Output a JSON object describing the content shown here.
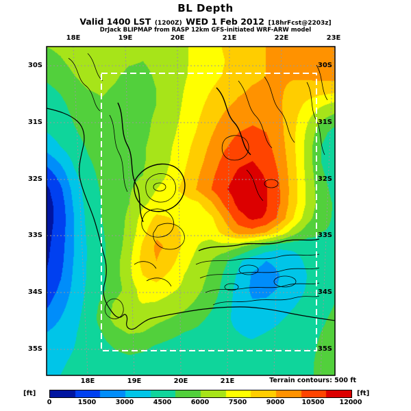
{
  "header": {
    "title": "BL Depth",
    "valid_prefix": "Valid 1400 LST",
    "valid_zulu": "(1200Z)",
    "valid_date": "WED 1 Feb 2012",
    "valid_fcst": "[18hrFcst@2203z]",
    "model_line": "DrJack BLIPMAP from RASP 12km GFS-initiated WRF-ARW model"
  },
  "axes": {
    "top_lons": [
      "18E",
      "19E",
      "20E",
      "21E",
      "22E",
      "23E"
    ],
    "bottom_lons": [
      "18E",
      "19E",
      "20E",
      "21E"
    ],
    "lat_labels": [
      "30S",
      "31S",
      "32S",
      "33S",
      "34S",
      "35S"
    ]
  },
  "footer": {
    "terrain_note": "Terrain contours: 500 ft",
    "unit_label": "[ft]"
  },
  "chart_data": {
    "type": "heatmap",
    "title": "BL Depth",
    "units": "ft",
    "valid_time": "1400 LST (1200Z) WED 1 Feb 2012",
    "forecast": "18hrFcst@2203z",
    "model": "DrJack BLIPMAP from RASP 12km GFS-initiated WRF-ARW model",
    "region": {
      "lon_min_e": 17.7,
      "lon_max_e": 23.3,
      "lat_north_s": 29.7,
      "lat_south_s": 35.5
    },
    "terrain_contour_interval_ft": 500,
    "fill_interval_ft": 1000,
    "colorbar": {
      "min": 0,
      "max": 12000,
      "ticks": [
        0,
        1500,
        3000,
        4500,
        6000,
        7500,
        9000,
        10500,
        12000
      ],
      "stops": [
        [
          0,
          "#000078"
        ],
        [
          1500,
          "#0040f0"
        ],
        [
          3000,
          "#00b4ff"
        ],
        [
          4200,
          "#00dcc8"
        ],
        [
          5000,
          "#28c850"
        ],
        [
          6200,
          "#8cdc20"
        ],
        [
          7500,
          "#ffff00"
        ],
        [
          8600,
          "#ffc800"
        ],
        [
          9600,
          "#ff8c00"
        ],
        [
          10600,
          "#ff3c00"
        ],
        [
          11400,
          "#e60000"
        ],
        [
          12000,
          "#a80000"
        ]
      ]
    },
    "grid": {
      "cols": 22,
      "rows": 24,
      "order": "north_to_south_rows_west_to_east_cols",
      "bl_depth_ft": [
        [
          6000,
          6200,
          6500,
          6800,
          6800,
          6600,
          6300,
          6200,
          6400,
          6700,
          6900,
          7200,
          7700,
          8100,
          8500,
          8800,
          9000,
          9200,
          9400,
          9600,
          9800,
          10000
        ],
        [
          5600,
          5900,
          6300,
          6700,
          6700,
          6400,
          6100,
          6000,
          6200,
          6600,
          6900,
          7200,
          7600,
          8000,
          8400,
          8700,
          9000,
          9200,
          9300,
          9500,
          9700,
          9900
        ],
        [
          5200,
          5500,
          6000,
          6400,
          6400,
          6100,
          5800,
          5800,
          6100,
          6500,
          6900,
          7300,
          7700,
          8100,
          8500,
          8800,
          9000,
          9100,
          9100,
          9200,
          9300,
          9400
        ],
        [
          4800,
          5100,
          5600,
          6000,
          6100,
          5900,
          5700,
          5700,
          6000,
          6500,
          7000,
          7500,
          8000,
          8400,
          8800,
          9100,
          9200,
          9100,
          8800,
          8600,
          8500,
          8400
        ],
        [
          4400,
          4800,
          5300,
          5700,
          5900,
          5800,
          5700,
          5700,
          6000,
          6500,
          7100,
          7700,
          8300,
          8800,
          9200,
          9400,
          9400,
          9100,
          8500,
          7800,
          7200,
          6800
        ],
        [
          4200,
          4600,
          5100,
          5500,
          5800,
          5800,
          5700,
          5800,
          6100,
          6600,
          7200,
          7900,
          8600,
          9200,
          9600,
          9800,
          9700,
          9200,
          8300,
          7200,
          6200,
          5600
        ],
        [
          4000,
          4400,
          4900,
          5300,
          5600,
          5700,
          5700,
          5800,
          6200,
          6700,
          7400,
          8100,
          8900,
          9600,
          10000,
          10200,
          10000,
          9300,
          8200,
          6800,
          5400,
          4600
        ],
        [
          3400,
          4000,
          4600,
          5100,
          5400,
          5600,
          5700,
          5900,
          6300,
          6900,
          7600,
          8400,
          9200,
          9900,
          10400,
          10600,
          10300,
          9500,
          8200,
          6600,
          5000,
          4200
        ],
        [
          2400,
          3200,
          4200,
          4900,
          5300,
          5500,
          5700,
          5900,
          6400,
          7000,
          7800,
          8600,
          9500,
          10300,
          10800,
          11000,
          10600,
          9700,
          8300,
          6600,
          5000,
          4300
        ],
        [
          1400,
          2400,
          3800,
          4700,
          5200,
          5500,
          5700,
          6000,
          6500,
          7200,
          8000,
          8900,
          9800,
          10600,
          11200,
          11400,
          10900,
          9900,
          8400,
          6700,
          5200,
          4500
        ],
        [
          800,
          1800,
          3400,
          4500,
          5100,
          5500,
          5900,
          6400,
          7000,
          7600,
          8300,
          9100,
          10000,
          10900,
          11500,
          11600,
          11100,
          10000,
          8500,
          6800,
          5400,
          4700
        ],
        [
          600,
          1500,
          3200,
          4400,
          5000,
          5500,
          6000,
          6800,
          7400,
          7600,
          7500,
          7800,
          8800,
          10200,
          11300,
          11700,
          11100,
          10000,
          8400,
          6800,
          5500,
          4900
        ],
        [
          600,
          1400,
          3000,
          4300,
          5000,
          5500,
          6200,
          7400,
          8200,
          8000,
          7400,
          7200,
          7800,
          9200,
          10600,
          11200,
          10900,
          9700,
          8000,
          6400,
          5300,
          4900
        ],
        [
          700,
          1500,
          3000,
          4200,
          4900,
          5500,
          6300,
          7700,
          8800,
          8600,
          7800,
          7200,
          7400,
          8400,
          9400,
          9600,
          9000,
          7800,
          6400,
          5400,
          5000,
          4900
        ],
        [
          800,
          1600,
          3000,
          4100,
          4800,
          5500,
          6500,
          8200,
          9200,
          8800,
          7800,
          7000,
          6600,
          6600,
          6200,
          5400,
          4600,
          4200,
          4200,
          4400,
          4800,
          5000
        ],
        [
          900,
          1700,
          3100,
          4100,
          4800,
          5600,
          6800,
          8400,
          9000,
          8400,
          7400,
          6600,
          6000,
          5200,
          4200,
          3400,
          3000,
          3200,
          3600,
          4200,
          4800,
          5000
        ],
        [
          1100,
          1900,
          3200,
          4100,
          4800,
          5600,
          6800,
          8000,
          8400,
          7800,
          7000,
          6400,
          5800,
          4800,
          3800,
          2900,
          2600,
          3000,
          3400,
          4000,
          4700,
          5000
        ],
        [
          1400,
          2200,
          3300,
          4200,
          4800,
          5500,
          6500,
          7400,
          7600,
          7200,
          6800,
          6200,
          5600,
          4600,
          3600,
          2800,
          2700,
          3100,
          3500,
          4100,
          4700,
          5000
        ],
        [
          1800,
          2600,
          3500,
          4300,
          5200,
          6200,
          6800,
          7000,
          6900,
          6600,
          6300,
          5800,
          5200,
          4400,
          3600,
          3100,
          3200,
          3600,
          3900,
          4300,
          4800,
          5000
        ],
        [
          2400,
          3000,
          3700,
          4400,
          5400,
          6400,
          6800,
          6700,
          6300,
          6000,
          5700,
          5300,
          4800,
          4200,
          3700,
          3500,
          3600,
          3900,
          4200,
          4500,
          4900,
          5100
        ],
        [
          3000,
          3400,
          3900,
          4400,
          5000,
          5700,
          6100,
          6000,
          5600,
          5300,
          5000,
          4800,
          4500,
          4200,
          4000,
          3900,
          4000,
          4200,
          4400,
          4700,
          5000,
          5200
        ],
        [
          3400,
          3700,
          4000,
          4300,
          4700,
          5100,
          5300,
          5200,
          4900,
          4700,
          4500,
          4400,
          4300,
          4200,
          4100,
          4100,
          4200,
          4400,
          4600,
          4800,
          5100,
          5300
        ],
        [
          3700,
          3900,
          4100,
          4300,
          4500,
          4700,
          4800,
          4700,
          4600,
          4500,
          4400,
          4400,
          4300,
          4300,
          4300,
          4300,
          4400,
          4500,
          4700,
          4900,
          5100,
          5300
        ],
        [
          3900,
          4000,
          4200,
          4300,
          4400,
          4500,
          4600,
          4600,
          4500,
          4500,
          4400,
          4400,
          4400,
          4400,
          4400,
          4400,
          4500,
          4600,
          4700,
          4900,
          5100,
          5300
        ]
      ]
    }
  }
}
